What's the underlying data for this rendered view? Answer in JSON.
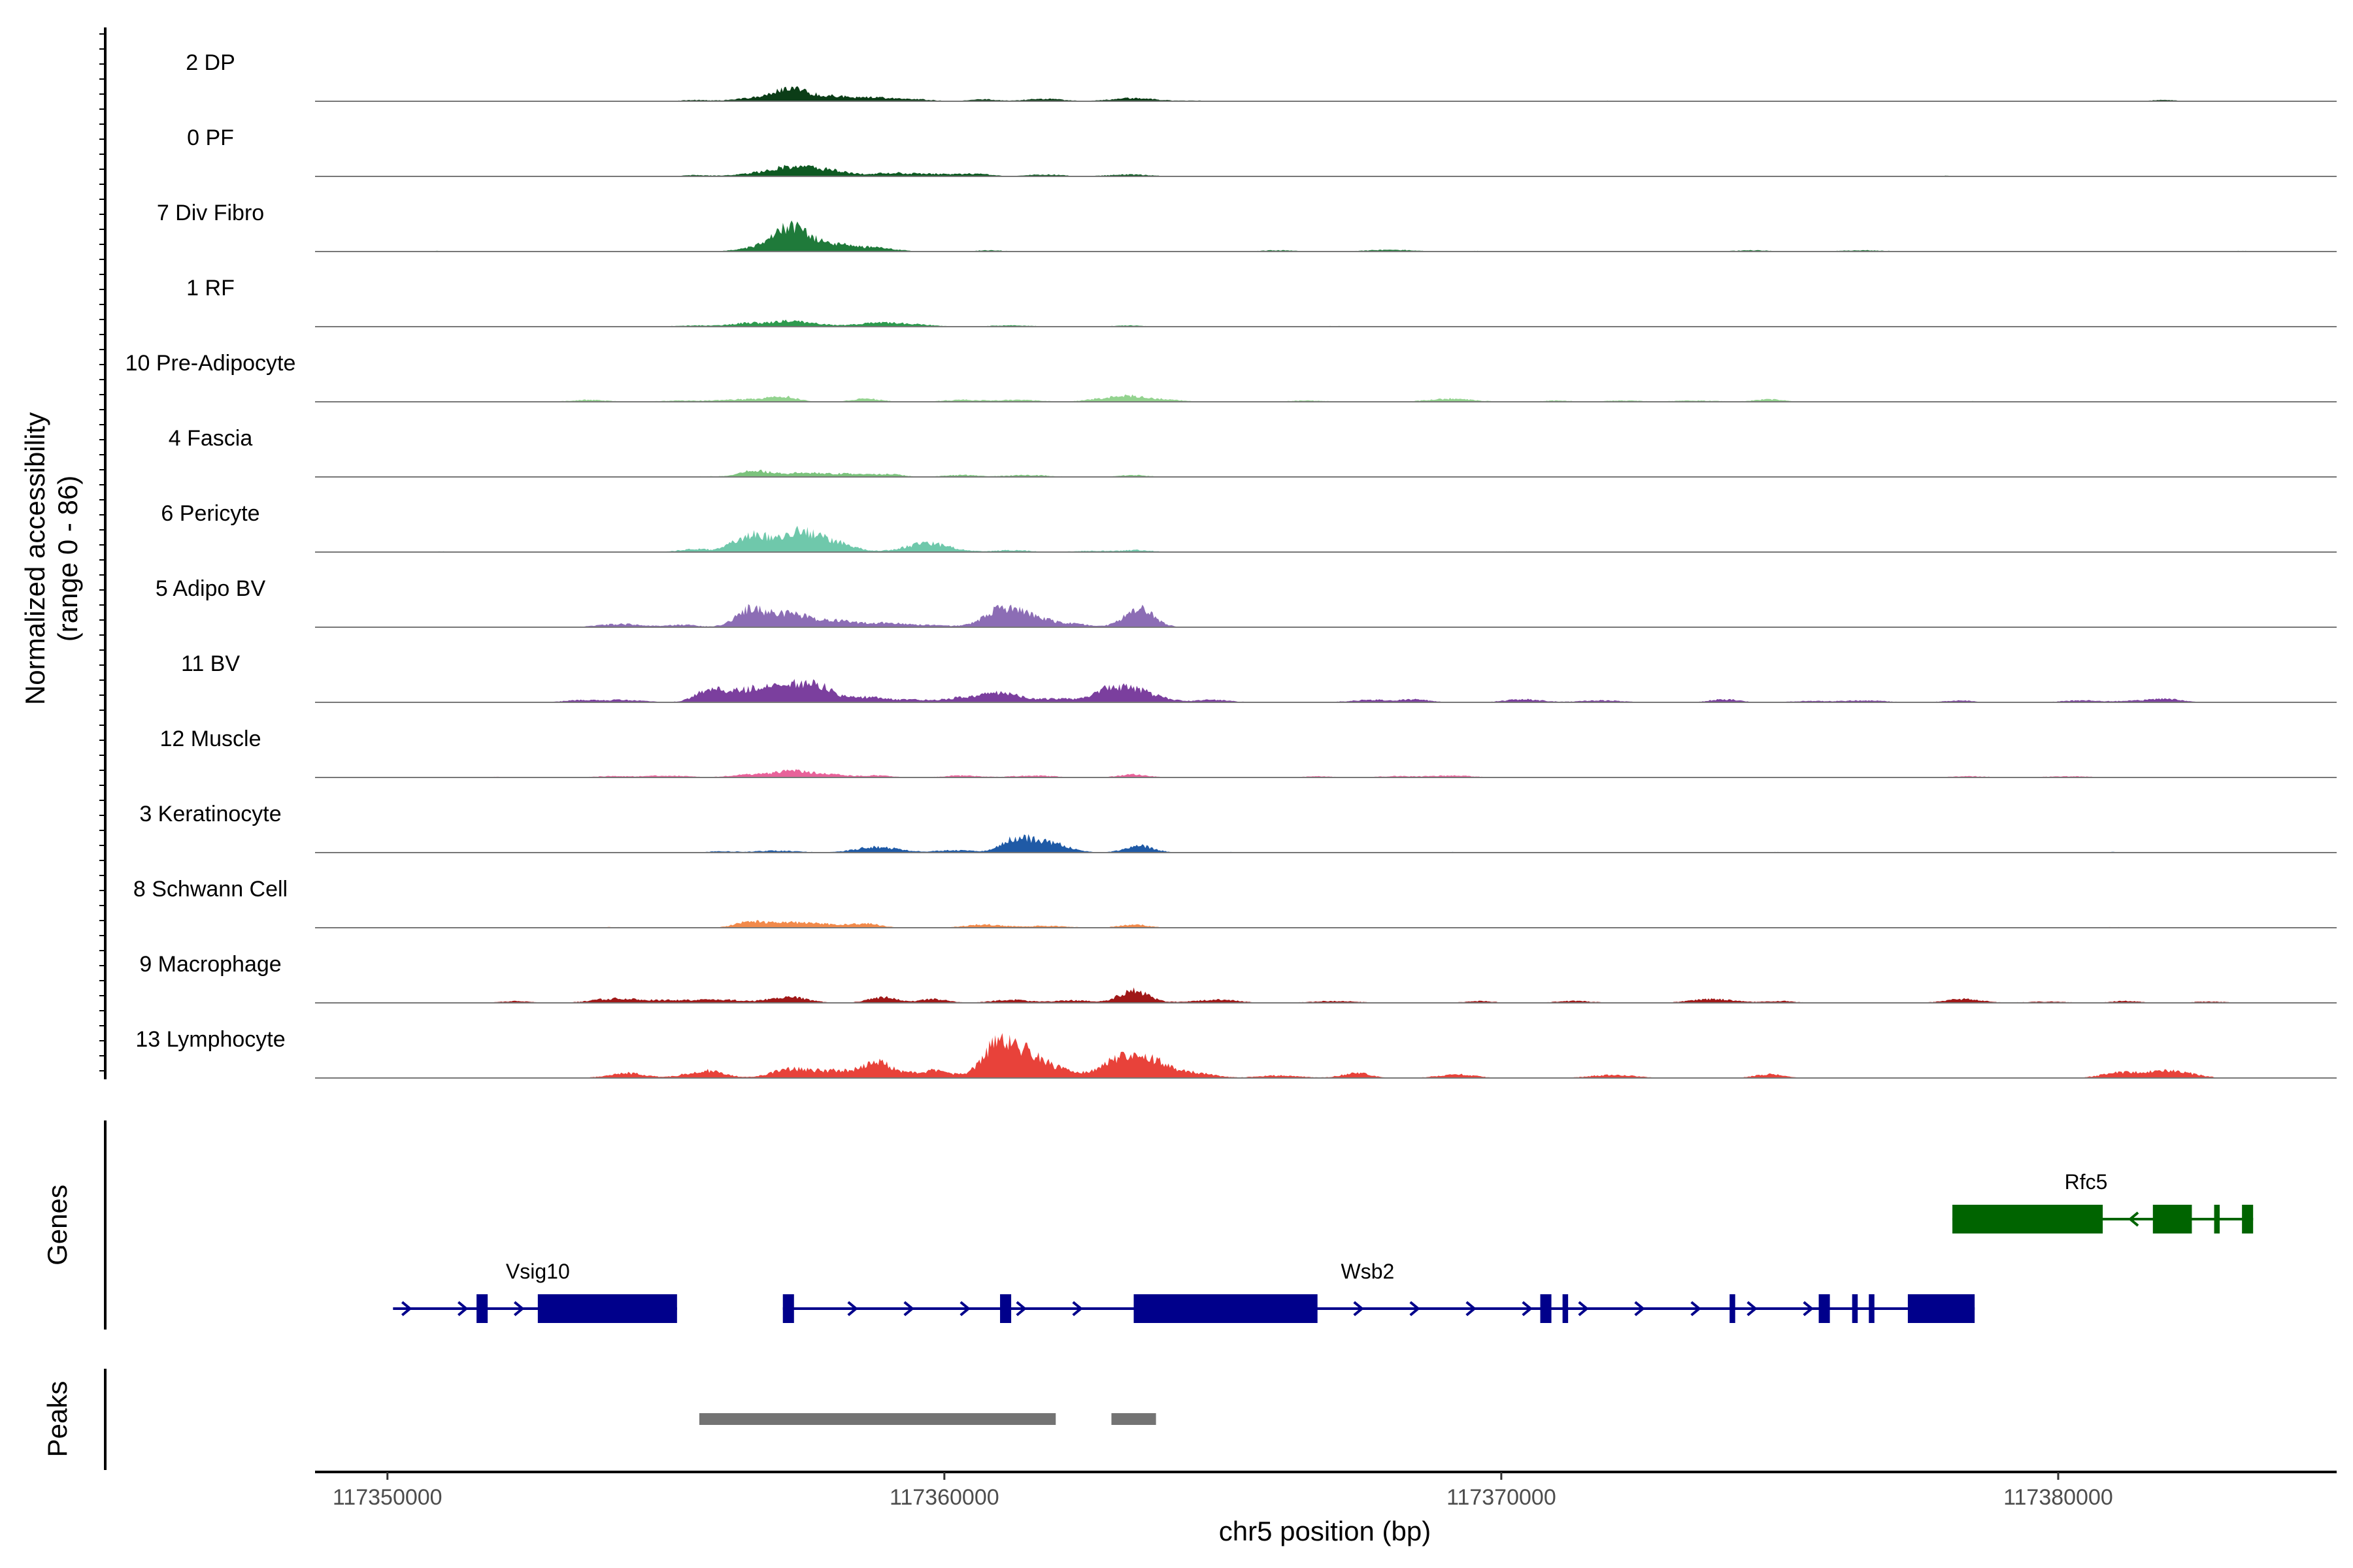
{
  "chart_data": {
    "type": "area",
    "ylabel": "Normalized accessibility",
    "ylabel_range": "(range 0 - 86)",
    "ylim": [
      0,
      86
    ],
    "xlabel": "chr5 position (bp)",
    "xlim": [
      117348700,
      117385000
    ],
    "x_ticks": [
      117350000,
      117360000,
      117370000,
      117380000
    ],
    "x_tick_labels": [
      "117350000",
      "117360000",
      "117370000",
      "117380000"
    ],
    "tracks": [
      {
        "name": "2 DP",
        "color": "#0b3d17",
        "peaks": [
          [
            117357200,
            12
          ],
          [
            117357450,
            8
          ],
          [
            117356700,
            6
          ],
          [
            117358000,
            6
          ],
          [
            117358600,
            5
          ],
          [
            117359300,
            4
          ],
          [
            117360700,
            3
          ],
          [
            117361800,
            4
          ],
          [
            117363400,
            5
          ],
          [
            117355500,
            2
          ],
          [
            117364500,
            1
          ],
          [
            117372000,
            1
          ],
          [
            117381900,
            2
          ]
        ]
      },
      {
        "name": "0 PF",
        "color": "#0e5a22",
        "peaks": [
          [
            117357200,
            11
          ],
          [
            117358000,
            8
          ],
          [
            117356700,
            6
          ],
          [
            117357600,
            7
          ],
          [
            117359000,
            5
          ],
          [
            117359800,
            4
          ],
          [
            117360600,
            4
          ],
          [
            117361800,
            3
          ],
          [
            117363300,
            3
          ],
          [
            117355500,
            2
          ],
          [
            117378000,
            1
          ]
        ]
      },
      {
        "name": "7 Div Fibro",
        "color": "#1f7a3a",
        "peaks": [
          [
            117357200,
            24
          ],
          [
            117357450,
            14
          ],
          [
            117356800,
            8
          ],
          [
            117358200,
            6
          ],
          [
            117358800,
            6
          ],
          [
            117357800,
            5
          ],
          [
            117360800,
            2
          ],
          [
            117366000,
            2
          ],
          [
            117368000,
            3
          ],
          [
            117369500,
            1
          ],
          [
            117374500,
            2
          ],
          [
            117376500,
            2
          ],
          [
            117383300,
            1
          ],
          [
            117351000,
            1
          ]
        ]
      },
      {
        "name": "1 RF",
        "color": "#2e9a4e",
        "peaks": [
          [
            117357200,
            8
          ],
          [
            117356500,
            6
          ],
          [
            117358800,
            6
          ],
          [
            117357700,
            4
          ],
          [
            117359500,
            3
          ],
          [
            117361200,
            2
          ],
          [
            117363300,
            2
          ],
          [
            117355500,
            2
          ],
          [
            117367000,
            1
          ]
        ]
      },
      {
        "name": "10 Pre-Adipocyte",
        "color": "#93d38f",
        "peaks": [
          [
            117357100,
            8
          ],
          [
            117363300,
            9
          ],
          [
            117356400,
            4
          ],
          [
            117358600,
            5
          ],
          [
            117360300,
            3
          ],
          [
            117361300,
            3
          ],
          [
            117362700,
            3
          ],
          [
            117364000,
            3
          ],
          [
            117369100,
            5
          ],
          [
            117374800,
            4
          ],
          [
            117353600,
            3
          ],
          [
            117355300,
            2
          ],
          [
            117371000,
            2
          ],
          [
            117372200,
            2
          ],
          [
            117373500,
            2
          ],
          [
            117378500,
            1
          ],
          [
            117366500,
            2
          ]
        ]
      },
      {
        "name": "4 Fascia",
        "color": "#7cc37d",
        "peaks": [
          [
            117356600,
            10
          ],
          [
            117357400,
            6
          ],
          [
            117358200,
            5
          ],
          [
            117359000,
            4
          ],
          [
            117360300,
            3
          ],
          [
            117361500,
            3
          ],
          [
            117363400,
            3
          ],
          [
            117355700,
            1
          ]
        ]
      },
      {
        "name": "6 Pericyte",
        "color": "#6fc8ab",
        "peaks": [
          [
            117356600,
            20
          ],
          [
            117357300,
            22
          ],
          [
            117357600,
            14
          ],
          [
            117356300,
            10
          ],
          [
            117358100,
            9
          ],
          [
            117359700,
            14
          ],
          [
            117355500,
            5
          ],
          [
            117361200,
            3
          ],
          [
            117362700,
            2
          ],
          [
            117363500,
            3
          ],
          [
            117370000,
            1
          ],
          [
            117351000,
            1
          ]
        ]
      },
      {
        "name": "5 Adipo BV",
        "color": "#8c6db5",
        "peaks": [
          [
            117356500,
            28
          ],
          [
            117357200,
            22
          ],
          [
            117361300,
            28
          ],
          [
            117363500,
            30
          ],
          [
            117358000,
            10
          ],
          [
            117358900,
            7
          ],
          [
            117360900,
            10
          ],
          [
            117362300,
            5
          ],
          [
            117354200,
            5
          ],
          [
            117355300,
            4
          ],
          [
            117359800,
            3
          ]
        ]
      },
      {
        "name": "11 BV",
        "color": "#7b3f9e",
        "peaks": [
          [
            117355800,
            20
          ],
          [
            117356500,
            18
          ],
          [
            117357300,
            28
          ],
          [
            117357800,
            14
          ],
          [
            117361000,
            16
          ],
          [
            117363400,
            20
          ],
          [
            117362900,
            14
          ],
          [
            117358600,
            8
          ],
          [
            117359500,
            4
          ],
          [
            117360300,
            6
          ],
          [
            117362000,
            6
          ],
          [
            117354200,
            4
          ],
          [
            117353400,
            3
          ],
          [
            117364800,
            4
          ],
          [
            117367700,
            4
          ],
          [
            117368500,
            4
          ],
          [
            117370400,
            5
          ],
          [
            117371800,
            3
          ],
          [
            117374000,
            5
          ],
          [
            117375500,
            2
          ],
          [
            117376500,
            3
          ],
          [
            117378200,
            3
          ],
          [
            117380400,
            3
          ],
          [
            117381500,
            3
          ],
          [
            117382000,
            4
          ]
        ]
      },
      {
        "name": "12 Muscle",
        "color": "#e8629a",
        "peaks": [
          [
            117357200,
            9
          ],
          [
            117356500,
            5
          ],
          [
            117357800,
            6
          ],
          [
            117358800,
            3
          ],
          [
            117360300,
            3
          ],
          [
            117361600,
            3
          ],
          [
            117363400,
            5
          ],
          [
            117354000,
            2
          ],
          [
            117355000,
            3
          ],
          [
            117366700,
            2
          ],
          [
            117368100,
            2
          ],
          [
            117369100,
            3
          ],
          [
            117352000,
            1
          ],
          [
            117378400,
            2
          ],
          [
            117380200,
            2
          ]
        ]
      },
      {
        "name": "3 Keratinocyte",
        "color": "#1f5aa6",
        "peaks": [
          [
            117361300,
            22
          ],
          [
            117361900,
            15
          ],
          [
            117358800,
            9
          ],
          [
            117363500,
            11
          ],
          [
            117360200,
            4
          ],
          [
            117357000,
            3
          ],
          [
            117356000,
            2
          ],
          [
            117365000,
            1
          ],
          [
            117369000,
            1
          ],
          [
            117375000,
            1
          ],
          [
            117381000,
            1
          ]
        ]
      },
      {
        "name": "8 Schwann Cell",
        "color": "#f28a4b",
        "peaks": [
          [
            117356500,
            9
          ],
          [
            117357100,
            7
          ],
          [
            117357800,
            6
          ],
          [
            117358600,
            6
          ],
          [
            117360700,
            5
          ],
          [
            117361800,
            3
          ],
          [
            117363400,
            5
          ],
          [
            117354000,
            1
          ],
          [
            117381000,
            1
          ]
        ]
      },
      {
        "name": "9 Macrophage",
        "color": "#a01818",
        "peaks": [
          [
            117363400,
            20
          ],
          [
            117357200,
            10
          ],
          [
            117354100,
            7
          ],
          [
            117358900,
            9
          ],
          [
            117361200,
            5
          ],
          [
            117356000,
            5
          ],
          [
            117359800,
            6
          ],
          [
            117362300,
            4
          ],
          [
            117355100,
            4
          ],
          [
            117352300,
            3
          ],
          [
            117365000,
            4
          ],
          [
            117367000,
            3
          ],
          [
            117369600,
            3
          ],
          [
            117371300,
            3
          ],
          [
            117373800,
            6
          ],
          [
            117375000,
            3
          ],
          [
            117378300,
            6
          ],
          [
            117379800,
            2
          ],
          [
            117381200,
            3
          ],
          [
            117382700,
            2
          ],
          [
            117364500,
            2
          ]
        ]
      },
      {
        "name": "13 Lymphocyte",
        "color": "#e8423a",
        "peaks": [
          [
            117360900,
            42
          ],
          [
            117361400,
            38
          ],
          [
            117363500,
            30
          ],
          [
            117358800,
            24
          ],
          [
            117357200,
            12
          ],
          [
            117362000,
            12
          ],
          [
            117363000,
            14
          ],
          [
            117355700,
            12
          ],
          [
            117357800,
            8
          ],
          [
            117359900,
            10
          ],
          [
            117354300,
            8
          ],
          [
            117364100,
            8
          ],
          [
            117358200,
            6
          ],
          [
            117359400,
            6
          ],
          [
            117366000,
            4
          ],
          [
            117367400,
            8
          ],
          [
            117369200,
            6
          ],
          [
            117372000,
            5
          ],
          [
            117374800,
            6
          ],
          [
            117381100,
            8
          ],
          [
            117382000,
            12
          ],
          [
            117364700,
            4
          ]
        ]
      }
    ],
    "genes": [
      {
        "name": "Vsig10",
        "strand": "+",
        "start": 117350100,
        "end": 117355200,
        "exons": [
          [
            117351600,
            117351800
          ],
          [
            117352700,
            117355200
          ]
        ],
        "color": "#00008b"
      },
      {
        "name": "Wsb2",
        "strand": "+",
        "start": 117357100,
        "end": 117378500,
        "exons": [
          [
            117357100,
            117357300
          ],
          [
            117361000,
            117361200
          ],
          [
            117363400,
            117366700
          ],
          [
            117370700,
            117370900
          ],
          [
            117371100,
            117371200
          ],
          [
            117374100,
            117374200
          ],
          [
            117375700,
            117375900
          ],
          [
            117376300,
            117376400
          ],
          [
            117376600,
            117376700
          ],
          [
            117377300,
            117378500
          ]
        ],
        "color": "#00008b"
      },
      {
        "name": "Rfc5",
        "strand": "-",
        "start": 117378100,
        "end": 117383500,
        "exons": [
          [
            117378100,
            117380800
          ],
          [
            117381700,
            117382400
          ],
          [
            117382800,
            117382900
          ],
          [
            117383300,
            117383500
          ]
        ],
        "color": "#006400"
      }
    ],
    "peak_regions": [
      [
        117355600,
        117362000
      ],
      [
        117363000,
        117363800
      ]
    ],
    "panel_labels": {
      "genes": "Genes",
      "peaks": "Peaks"
    }
  }
}
